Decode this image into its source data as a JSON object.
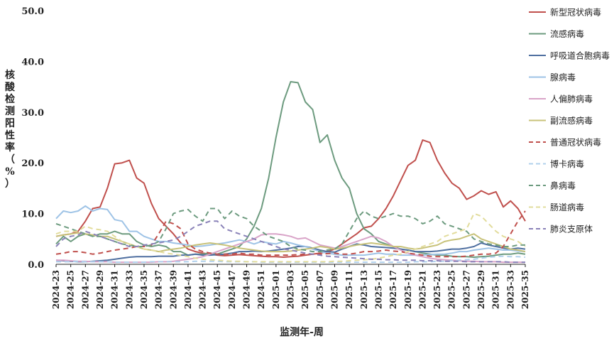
{
  "chart_data": {
    "type": "line",
    "ylabel": "核酸检测阳性率（%）",
    "xlabel": "监测年-周",
    "ylim": [
      0,
      50
    ],
    "yticks": [
      "0.0",
      "10.0",
      "20.0",
      "30.0",
      "40.0",
      "50.0"
    ],
    "legend_position": "right",
    "grid": false,
    "x": [
      "2024-23",
      "2024-24",
      "2024-25",
      "2024-26",
      "2024-27",
      "2024-28",
      "2024-29",
      "2024-30",
      "2024-31",
      "2024-32",
      "2024-33",
      "2024-34",
      "2024-35",
      "2024-36",
      "2024-37",
      "2024-38",
      "2024-39",
      "2024-40",
      "2024-41",
      "2024-42",
      "2024-43",
      "2024-44",
      "2024-45",
      "2024-46",
      "2024-47",
      "2024-48",
      "2024-49",
      "2024-50",
      "2024-51",
      "2024-52",
      "2025-01",
      "2025-02",
      "2025-03",
      "2025-04",
      "2025-05",
      "2025-06",
      "2025-07",
      "2025-08",
      "2025-09",
      "2025-10",
      "2025-11",
      "2025-12",
      "2025-13",
      "2025-14",
      "2025-15",
      "2025-16",
      "2025-17",
      "2025-18",
      "2025-19",
      "2025-20",
      "2025-21",
      "2025-22",
      "2025-23",
      "2025-24",
      "2025-25",
      "2025-26",
      "2025-27",
      "2025-28",
      "2025-29",
      "2025-30",
      "2025-31",
      "2025-32",
      "2025-33",
      "2025-34",
      "2025-35"
    ],
    "xtick_labels": [
      "2024-23",
      "2024-25",
      "2024-27",
      "2024-29",
      "2024-31",
      "2024-33",
      "2024-35",
      "2024-37",
      "2024-39",
      "2024-41",
      "2024-43",
      "2024-45",
      "2024-47",
      "2024-49",
      "2024-51",
      "2025-01",
      "2025-03",
      "2025-05",
      "2025-07",
      "2025-09",
      "2025-11",
      "2025-13",
      "2025-15",
      "2025-17",
      "2025-19",
      "2025-21",
      "2025-23",
      "2025-25",
      "2025-27",
      "2025-29",
      "2025-31",
      "2025-33",
      "2025-35"
    ],
    "series": [
      {
        "name": "新型冠状病毒",
        "color": "#c0504d",
        "dash": false,
        "values": [
          5.5,
          5.8,
          6.0,
          6.5,
          8.5,
          11.0,
          11.3,
          15.0,
          19.8,
          20.0,
          20.5,
          17.0,
          16.0,
          12.0,
          9.0,
          7.5,
          6.0,
          4.2,
          3.0,
          2.5,
          2.2,
          2.0,
          1.8,
          1.7,
          1.8,
          1.9,
          1.8,
          1.7,
          1.6,
          1.5,
          1.5,
          1.4,
          1.5,
          1.6,
          1.8,
          2.0,
          2.2,
          2.5,
          3.0,
          4.0,
          5.0,
          6.0,
          7.2,
          7.5,
          9.0,
          11.0,
          13.5,
          16.5,
          19.5,
          20.5,
          24.5,
          24.0,
          20.5,
          18.0,
          16.0,
          15.0,
          12.8,
          13.5,
          14.5,
          13.8,
          14.3,
          11.3,
          12.5,
          11.0,
          8.5
        ]
      },
      {
        "name": "流感病毒",
        "color": "#6d9b7f",
        "dash": false,
        "values": [
          4.0,
          5.5,
          4.5,
          5.5,
          6.0,
          5.5,
          6.0,
          6.0,
          6.5,
          6.0,
          6.0,
          4.5,
          3.8,
          3.5,
          3.8,
          3.5,
          2.5,
          2.5,
          1.8,
          2.0,
          2.0,
          2.2,
          2.0,
          2.5,
          3.0,
          3.5,
          5.0,
          7.5,
          11.0,
          17.0,
          25.0,
          32.0,
          36.0,
          35.8,
          32.0,
          30.5,
          24.0,
          25.5,
          20.5,
          17.0,
          15.0,
          10.0,
          7.0,
          6.0,
          4.5,
          4.0,
          3.5,
          3.0,
          2.8,
          2.5,
          2.2,
          2.0,
          1.8,
          1.8,
          1.6,
          1.5,
          1.5,
          1.4,
          1.5,
          1.6,
          1.8,
          2.0,
          2.0,
          2.2,
          2.0
        ]
      },
      {
        "name": "呼吸道合胞病毒",
        "color": "#4f6fa0",
        "dash": false,
        "values": [
          0.8,
          0.7,
          0.6,
          0.5,
          0.5,
          0.6,
          0.7,
          0.8,
          1.0,
          1.2,
          1.4,
          1.5,
          1.5,
          1.5,
          1.6,
          1.6,
          1.6,
          1.8,
          1.8,
          2.0,
          1.8,
          1.8,
          1.9,
          2.0,
          2.2,
          2.5,
          2.5,
          2.6,
          2.5,
          2.6,
          2.8,
          3.0,
          3.2,
          3.5,
          3.5,
          3.2,
          2.8,
          2.5,
          2.4,
          3.0,
          3.5,
          4.0,
          3.8,
          3.5,
          3.4,
          3.3,
          3.2,
          3.0,
          2.8,
          2.5,
          2.5,
          2.5,
          2.6,
          2.8,
          3.0,
          3.0,
          3.2,
          3.5,
          4.2,
          3.8,
          3.5,
          3.2,
          3.0,
          3.2,
          3.0
        ]
      },
      {
        "name": "腺病毒",
        "color": "#9ec3e6",
        "dash": false,
        "values": [
          9.0,
          10.5,
          10.2,
          10.5,
          11.5,
          10.5,
          11.0,
          10.8,
          8.8,
          8.5,
          6.5,
          6.5,
          5.5,
          5.0,
          4.5,
          4.5,
          4.2,
          4.0,
          3.8,
          3.5,
          3.6,
          3.8,
          4.0,
          4.2,
          4.5,
          4.8,
          4.5,
          4.0,
          4.5,
          4.2,
          4.0,
          4.5,
          4.2,
          3.8,
          3.5,
          3.0,
          2.5,
          2.2,
          2.0,
          1.8,
          1.8,
          1.8,
          1.8,
          2.0,
          2.2,
          2.0,
          2.0,
          1.8,
          1.8,
          1.8,
          1.8,
          1.9,
          2.0,
          2.0,
          2.2,
          2.5,
          2.5,
          2.8,
          3.0,
          3.2,
          3.0,
          2.8,
          2.8,
          2.6,
          2.5
        ]
      },
      {
        "name": "人偏肺病毒",
        "color": "#d9a4c8",
        "dash": false,
        "values": [
          0.8,
          0.8,
          0.7,
          0.6,
          0.6,
          0.5,
          0.5,
          0.5,
          0.4,
          0.4,
          0.4,
          0.4,
          0.4,
          0.4,
          0.5,
          0.5,
          0.6,
          0.8,
          1.0,
          1.2,
          1.5,
          2.0,
          2.5,
          3.0,
          3.5,
          4.0,
          4.5,
          5.0,
          5.8,
          6.0,
          6.0,
          5.8,
          5.5,
          5.0,
          5.2,
          4.5,
          3.8,
          3.5,
          3.2,
          3.5,
          4.0,
          4.5,
          5.0,
          5.5,
          5.2,
          4.5,
          3.5,
          2.8,
          2.2,
          1.8,
          1.5,
          1.2,
          1.0,
          0.9,
          0.8,
          0.7,
          0.6,
          0.6,
          0.5,
          0.5,
          0.5,
          0.4,
          0.4,
          0.4,
          0.4
        ]
      },
      {
        "name": "副流感病毒",
        "color": "#c8c27a",
        "dash": false,
        "values": [
          5.5,
          5.8,
          6.0,
          6.2,
          6.0,
          5.8,
          5.5,
          5.5,
          5.0,
          4.5,
          4.0,
          3.5,
          3.0,
          2.8,
          2.5,
          2.8,
          3.0,
          3.2,
          3.5,
          3.8,
          4.0,
          4.2,
          4.0,
          3.8,
          3.5,
          3.2,
          3.0,
          2.8,
          2.6,
          2.5,
          2.5,
          2.5,
          2.6,
          2.8,
          3.0,
          3.2,
          3.5,
          3.3,
          3.0,
          3.2,
          3.5,
          3.8,
          4.0,
          4.2,
          4.0,
          3.8,
          3.5,
          3.5,
          3.2,
          3.0,
          3.2,
          3.5,
          3.8,
          4.5,
          4.8,
          5.0,
          5.5,
          6.0,
          5.0,
          4.5,
          4.0,
          3.5,
          3.0,
          2.8,
          2.5
        ]
      },
      {
        "name": "普通冠状病毒",
        "color": "#c0504d",
        "dash": true,
        "values": [
          2.0,
          2.2,
          2.5,
          2.5,
          2.3,
          2.0,
          2.2,
          2.5,
          2.8,
          3.0,
          3.2,
          3.5,
          3.5,
          3.8,
          6.0,
          8.5,
          8.0,
          7.0,
          4.0,
          3.0,
          2.5,
          2.2,
          2.0,
          2.0,
          2.0,
          2.2,
          2.0,
          2.0,
          1.8,
          1.8,
          1.8,
          1.8,
          1.8,
          1.9,
          2.0,
          2.0,
          2.0,
          2.1,
          2.2,
          2.0,
          2.0,
          2.2,
          2.5,
          2.5,
          2.6,
          2.8,
          2.6,
          2.5,
          2.2,
          2.0,
          1.8,
          1.6,
          1.5,
          1.5,
          1.5,
          1.5,
          1.6,
          1.8,
          2.0,
          2.0,
          2.2,
          3.5,
          6.0,
          8.5,
          10.5
        ]
      },
      {
        "name": "博卡病毒",
        "color": "#b0d0ec",
        "dash": true,
        "values": [
          0.5,
          0.5,
          0.5,
          0.6,
          0.5,
          0.5,
          0.5,
          0.5,
          0.4,
          0.4,
          0.4,
          0.4,
          0.4,
          0.5,
          0.5,
          0.5,
          0.5,
          0.5,
          0.5,
          0.6,
          0.6,
          0.6,
          0.6,
          0.5,
          0.5,
          0.5,
          0.5,
          0.5,
          0.4,
          0.4,
          0.4,
          0.4,
          0.4,
          0.4,
          0.4,
          0.4,
          0.4,
          0.4,
          0.4,
          0.4,
          0.4,
          0.4,
          0.4,
          0.4,
          0.4,
          0.4,
          0.4,
          0.4,
          0.4,
          0.5,
          0.5,
          0.5,
          0.6,
          0.6,
          0.7,
          0.8,
          0.9,
          1.0,
          1.2,
          1.4,
          1.5,
          1.6,
          1.5,
          1.5,
          1.4
        ]
      },
      {
        "name": "鼻病毒",
        "color": "#6d9b7f",
        "dash": true,
        "values": [
          8.0,
          7.5,
          7.0,
          6.5,
          6.0,
          5.5,
          5.5,
          5.0,
          4.5,
          4.0,
          3.8,
          3.5,
          3.5,
          3.8,
          4.5,
          7.0,
          10.0,
          10.5,
          10.8,
          9.5,
          8.5,
          11.0,
          11.0,
          9.0,
          10.5,
          9.5,
          9.0,
          7.5,
          6.5,
          5.5,
          5.0,
          4.5,
          3.5,
          3.0,
          2.8,
          2.5,
          2.5,
          2.8,
          3.0,
          4.0,
          6.5,
          9.0,
          10.5,
          9.5,
          9.0,
          9.5,
          10.0,
          9.5,
          9.5,
          9.0,
          8.0,
          8.5,
          9.5,
          8.0,
          7.5,
          7.0,
          6.5,
          5.0,
          4.5,
          4.0,
          3.8,
          3.5,
          3.5,
          3.8,
          3.8
        ]
      },
      {
        "name": "肠道病毒",
        "color": "#e2dc9c",
        "dash": true,
        "values": [
          6.0,
          6.5,
          6.5,
          6.5,
          7.5,
          7.0,
          6.8,
          6.5,
          5.5,
          4.5,
          4.0,
          3.5,
          3.0,
          2.8,
          2.5,
          2.2,
          2.0,
          1.8,
          1.5,
          1.2,
          1.0,
          0.9,
          0.8,
          0.7,
          0.6,
          0.6,
          0.5,
          0.5,
          0.5,
          0.5,
          0.5,
          0.5,
          0.5,
          0.5,
          0.5,
          0.5,
          0.5,
          0.5,
          0.6,
          0.6,
          0.7,
          0.8,
          0.9,
          1.0,
          1.2,
          1.5,
          1.8,
          2.0,
          2.5,
          3.0,
          3.5,
          4.0,
          4.5,
          5.5,
          6.0,
          6.5,
          7.0,
          10.0,
          9.5,
          8.0,
          6.5,
          5.5,
          5.0,
          4.5,
          3.5
        ]
      },
      {
        "name": "肺炎支原体",
        "color": "#8a82b8",
        "dash": true,
        "values": [
          3.5,
          5.0,
          5.5,
          5.8,
          6.5,
          6.0,
          5.5,
          5.0,
          4.5,
          4.0,
          3.5,
          3.5,
          3.8,
          4.0,
          4.2,
          4.5,
          4.8,
          5.5,
          6.5,
          7.5,
          8.0,
          8.5,
          8.5,
          7.0,
          6.5,
          6.0,
          5.5,
          5.0,
          4.5,
          4.0,
          3.5,
          3.0,
          2.8,
          2.5,
          2.2,
          2.0,
          1.8,
          1.6,
          1.5,
          1.4,
          1.3,
          1.2,
          1.1,
          1.0,
          1.0,
          0.9,
          0.9,
          0.8,
          0.8,
          0.8,
          0.7,
          0.7,
          0.7,
          0.6,
          0.6,
          0.6,
          0.5,
          0.5,
          0.5,
          0.5,
          0.5,
          0.5,
          0.4,
          0.4,
          0.4
        ]
      }
    ]
  }
}
